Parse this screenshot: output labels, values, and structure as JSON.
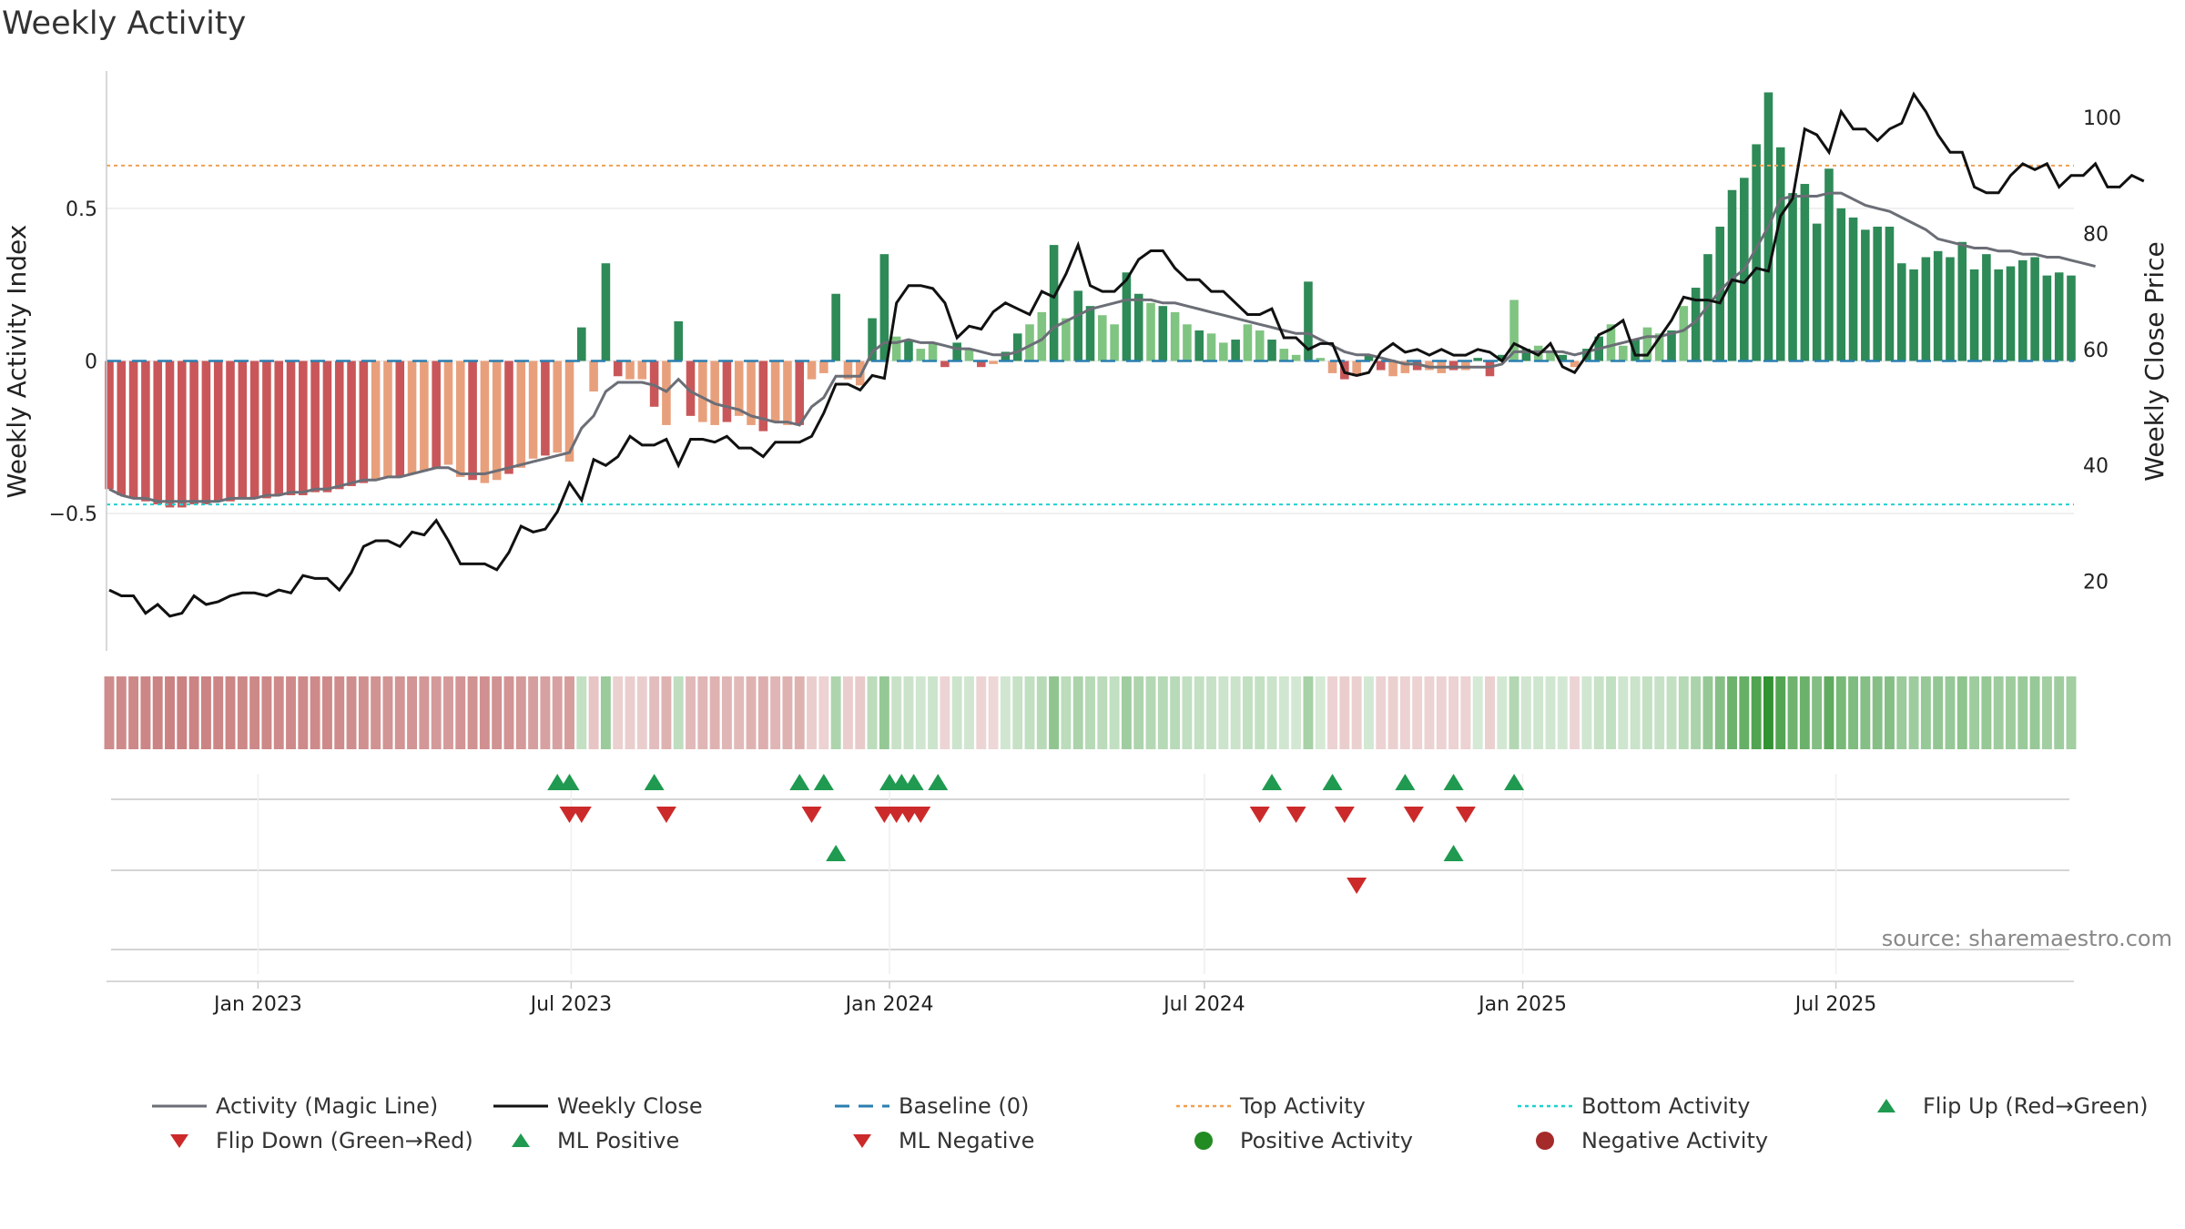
{
  "chart_data": {
    "type": "bar",
    "title": "Weekly Activity",
    "ylabel_left": "Weekly Activity Index",
    "ylabel_right": "Weekly Close Price",
    "ylim_left": [
      -0.95,
      0.95
    ],
    "ylim_right": [
      8,
      108
    ],
    "yticks_left": [
      {
        "v": 0.5,
        "label": "0.5"
      },
      {
        "v": 0,
        "label": "0"
      },
      {
        "v": -0.5,
        "label": "−0.5"
      }
    ],
    "yticks_right": [
      20,
      40,
      60,
      80,
      100
    ],
    "x_start": "2022-10-07",
    "x_ticks": [
      {
        "date": "2023-01-01",
        "label": "Jan 2023"
      },
      {
        "date": "2023-07-01",
        "label": "Jul 2023"
      },
      {
        "date": "2024-01-01",
        "label": "Jan 2024"
      },
      {
        "date": "2024-07-01",
        "label": "Jul 2024"
      },
      {
        "date": "2025-01-01",
        "label": "Jan 2025"
      },
      {
        "date": "2025-07-01",
        "label": "Jul 2025"
      }
    ],
    "top_activity": 0.64,
    "bottom_activity": -0.47,
    "activity": [
      -0.42,
      -0.44,
      -0.45,
      -0.46,
      -0.47,
      -0.48,
      -0.48,
      -0.47,
      -0.47,
      -0.46,
      -0.46,
      -0.45,
      -0.45,
      -0.45,
      -0.44,
      -0.44,
      -0.44,
      -0.43,
      -0.43,
      -0.42,
      -0.41,
      -0.4,
      -0.39,
      -0.38,
      -0.38,
      -0.37,
      -0.36,
      -0.35,
      -0.34,
      -0.38,
      -0.39,
      -0.4,
      -0.39,
      -0.37,
      -0.35,
      -0.32,
      -0.31,
      -0.3,
      -0.33,
      0.11,
      -0.1,
      0.32,
      -0.05,
      -0.06,
      -0.06,
      -0.15,
      -0.21,
      0.13,
      -0.18,
      -0.2,
      -0.21,
      -0.2,
      -0.18,
      -0.21,
      -0.23,
      -0.2,
      -0.21,
      -0.21,
      -0.06,
      -0.04,
      0.22,
      -0.06,
      -0.08,
      0.14,
      0.35,
      0.08,
      0.07,
      0.04,
      0.06,
      -0.02,
      0.06,
      0.04,
      -0.02,
      -0.01,
      0.03,
      0.09,
      0.12,
      0.16,
      0.38,
      0.14,
      0.23,
      0.18,
      0.15,
      0.12,
      0.29,
      0.22,
      0.19,
      0.18,
      0.16,
      0.12,
      0.1,
      0.09,
      0.06,
      0.07,
      0.12,
      0.1,
      0.07,
      0.04,
      0.02,
      0.26,
      0.01,
      -0.04,
      -0.06,
      -0.05,
      0.02,
      -0.03,
      -0.05,
      -0.04,
      -0.03,
      -0.03,
      -0.04,
      -0.03,
      -0.03,
      0.01,
      -0.05,
      0.02,
      0.2,
      0.04,
      0.05,
      0.03,
      0.02,
      -0.02,
      0.04,
      0.08,
      0.12,
      0.05,
      0.07,
      0.11,
      0.09,
      0.1,
      0.18,
      0.24,
      0.35,
      0.44,
      0.56,
      0.6,
      0.71,
      0.88,
      0.7,
      0.55,
      0.58,
      0.45,
      0.63,
      0.5,
      0.47,
      0.43,
      0.44,
      0.44,
      0.32,
      0.3,
      0.34,
      0.36,
      0.34,
      0.39,
      0.3,
      0.35,
      0.3,
      0.31,
      0.33,
      0.34,
      0.28,
      0.29,
      0.28
    ],
    "magic_line": [
      -0.42,
      -0.44,
      -0.45,
      -0.45,
      -0.46,
      -0.46,
      -0.46,
      -0.46,
      -0.46,
      -0.46,
      -0.45,
      -0.45,
      -0.45,
      -0.44,
      -0.44,
      -0.43,
      -0.43,
      -0.42,
      -0.42,
      -0.41,
      -0.4,
      -0.39,
      -0.39,
      -0.38,
      -0.38,
      -0.37,
      -0.36,
      -0.35,
      -0.35,
      -0.37,
      -0.37,
      -0.37,
      -0.36,
      -0.35,
      -0.34,
      -0.33,
      -0.32,
      -0.31,
      -0.3,
      -0.22,
      -0.18,
      -0.1,
      -0.07,
      -0.07,
      -0.07,
      -0.08,
      -0.1,
      -0.06,
      -0.1,
      -0.12,
      -0.14,
      -0.15,
      -0.16,
      -0.18,
      -0.19,
      -0.2,
      -0.2,
      -0.21,
      -0.15,
      -0.12,
      -0.05,
      -0.05,
      -0.05,
      0.03,
      0.06,
      0.06,
      0.07,
      0.06,
      0.06,
      0.05,
      0.04,
      0.04,
      0.03,
      0.02,
      0.02,
      0.03,
      0.05,
      0.07,
      0.11,
      0.13,
      0.15,
      0.17,
      0.18,
      0.19,
      0.2,
      0.2,
      0.2,
      0.19,
      0.19,
      0.18,
      0.17,
      0.16,
      0.15,
      0.14,
      0.13,
      0.12,
      0.11,
      0.1,
      0.09,
      0.09,
      0.07,
      0.05,
      0.03,
      0.02,
      0.02,
      0.01,
      0.0,
      -0.01,
      -0.01,
      -0.02,
      -0.02,
      -0.02,
      -0.02,
      -0.02,
      -0.02,
      -0.01,
      0.03,
      0.03,
      0.03,
      0.03,
      0.03,
      0.02,
      0.03,
      0.04,
      0.05,
      0.06,
      0.07,
      0.08,
      0.08,
      0.09,
      0.1,
      0.13,
      0.18,
      0.23,
      0.27,
      0.3,
      0.37,
      0.44,
      0.53,
      0.54,
      0.54,
      0.54,
      0.55,
      0.55,
      0.53,
      0.51,
      0.5,
      0.49,
      0.47,
      0.45,
      0.43,
      0.4,
      0.39,
      0.38,
      0.37,
      0.37,
      0.36,
      0.36,
      0.35,
      0.35,
      0.34,
      0.34,
      0.33,
      0.32,
      0.31
    ],
    "close": [
      18.5,
      17.5,
      17.5,
      14.5,
      16,
      14,
      14.5,
      17.5,
      16,
      16.5,
      17.5,
      18,
      18,
      17.5,
      18.5,
      18,
      21,
      20.5,
      20.5,
      18.5,
      21.5,
      26,
      27,
      27,
      26,
      28.5,
      28,
      30.5,
      27,
      23,
      23,
      23,
      22,
      25,
      29.5,
      28.5,
      29,
      32,
      37,
      34,
      41,
      40,
      41.5,
      45,
      43.5,
      43.5,
      44.5,
      40,
      44.5,
      44.5,
      44,
      45,
      43,
      43,
      41.5,
      44,
      44,
      44,
      45,
      49,
      54,
      54,
      53,
      55.5,
      55,
      68,
      71,
      71,
      70.5,
      68,
      62,
      64,
      63.5,
      66.5,
      68,
      67,
      66,
      70,
      69,
      73,
      78,
      71,
      70,
      70,
      72,
      75.5,
      77,
      77,
      74,
      72,
      72,
      70,
      70,
      68,
      66,
      66,
      67,
      62,
      62,
      60,
      61,
      61,
      56,
      55.5,
      56,
      59.5,
      61,
      59.5,
      60,
      59,
      60,
      59,
      59,
      60,
      59.5,
      58,
      61,
      60,
      59,
      61,
      57,
      56,
      59,
      62.5,
      63.5,
      65,
      59,
      59,
      62,
      65,
      69,
      68.5,
      68.5,
      68,
      72,
      71.5,
      74,
      73.5,
      83,
      86,
      98,
      97,
      94,
      101,
      98,
      98,
      96,
      98,
      99,
      104,
      101,
      97,
      94,
      94,
      88,
      87,
      87,
      90,
      92,
      91,
      92,
      88,
      90,
      90,
      92,
      88,
      88,
      90,
      89
    ],
    "flip_up_dates": [
      "2023-06-23",
      "2023-06-30",
      "2023-08-18",
      "2023-11-10",
      "2023-11-24",
      "2024-01-01",
      "2024-01-08",
      "2024-01-15",
      "2024-01-29",
      "2024-08-09",
      "2024-09-13",
      "2024-10-25",
      "2024-11-22",
      "2024-12-27"
    ],
    "flip_down_dates": [
      "2023-06-30",
      "2023-07-07",
      "2023-08-25",
      "2023-11-17",
      "2023-12-29",
      "2024-01-05",
      "2024-01-12",
      "2024-01-19",
      "2024-08-02",
      "2024-08-23",
      "2024-09-20",
      "2024-10-30",
      "2024-11-29"
    ],
    "ml_positive_dates": [
      "2023-12-01",
      "2024-11-22"
    ],
    "ml_negative_dates": [
      "2024-09-27"
    ],
    "colors": {
      "neg_strong": "#c9575a",
      "neg_weak": "#e8a07c",
      "pos_strong": "#2e8a57",
      "pos_weak": "#80c482",
      "magic_line": "#6b6e76",
      "close": "#111111",
      "baseline": "#2a7fb0",
      "top": "#f0a050",
      "bottom": "#20d0d0",
      "flip_up": "#1f9a50",
      "flip_down": "#cc2a2a",
      "positive": "#228b22",
      "negative": "#a52a2a"
    },
    "legend": [
      "Activity (Magic Line)",
      "Weekly Close",
      "Baseline (0)",
      "Top Activity",
      "Bottom Activity",
      "Flip Up (Red→Green)",
      "Flip Down (Green→Red)",
      "ML Positive",
      "ML Negative",
      "Positive Activity",
      "Negative Activity"
    ],
    "source": "source: sharemaestro.com"
  }
}
